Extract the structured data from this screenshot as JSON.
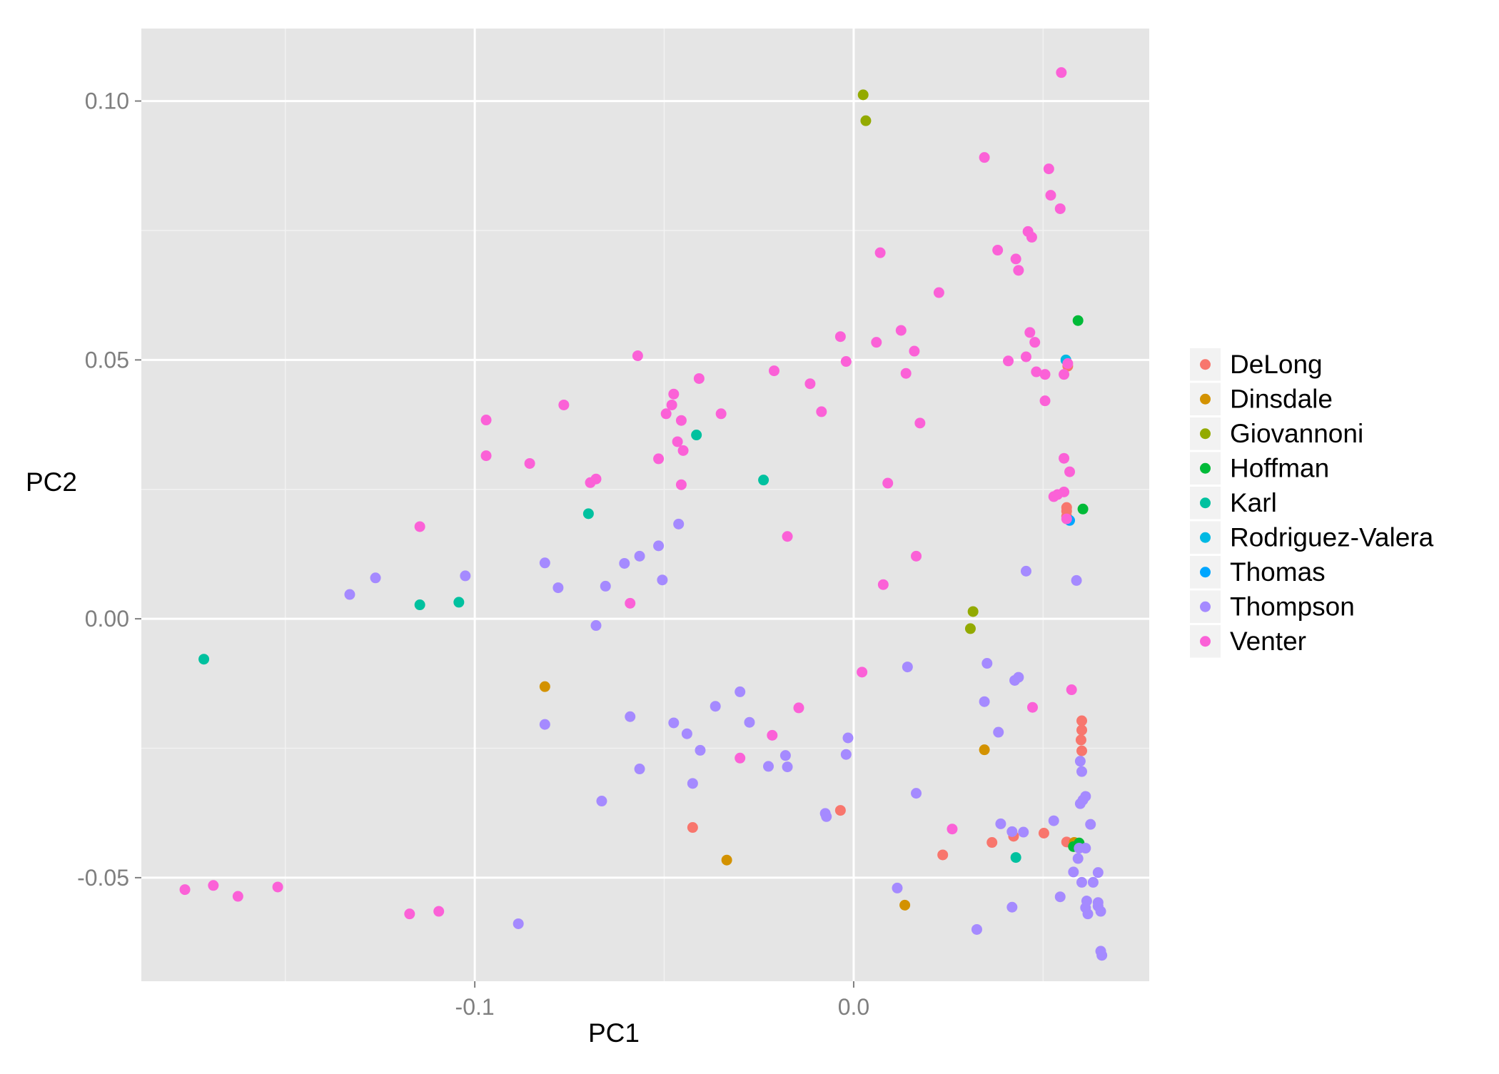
{
  "chart_data": {
    "type": "scatter",
    "title": "",
    "xlabel": "PC1",
    "ylabel": "PC2",
    "xlim": [
      -0.188,
      0.078
    ],
    "ylim": [
      -0.07,
      0.114
    ],
    "x_ticks": [
      -0.1,
      0.0
    ],
    "x_tick_labels": [
      "-0.1",
      "0.0"
    ],
    "y_ticks": [
      0.1,
      0.05,
      0.0,
      -0.05
    ],
    "y_tick_labels": [
      "0.10",
      "0.05",
      "0.00",
      "-0.05"
    ],
    "grid": true,
    "legend_position": "right",
    "colors": {
      "panel_background": "#e5e5e5",
      "grid_major": "#ffffff",
      "grid_minor": "#f2f2f2",
      "tick_label": "#7f7f7f"
    },
    "series": [
      {
        "name": "DeLong",
        "color": "#f8766d",
        "points": [
          [
            -0.0425,
            -0.0403
          ],
          [
            -0.0035,
            -0.037
          ],
          [
            0.0235,
            -0.0456
          ],
          [
            0.0365,
            -0.0432
          ],
          [
            0.0422,
            -0.042
          ],
          [
            0.0502,
            -0.0414
          ],
          [
            0.0562,
            -0.0431
          ],
          [
            0.0575,
            -0.0434
          ],
          [
            0.0602,
            -0.0197
          ],
          [
            0.0602,
            -0.0215
          ],
          [
            0.06,
            -0.0234
          ],
          [
            0.0602,
            -0.0255
          ],
          [
            0.0562,
            0.0208
          ],
          [
            0.0562,
            0.0198
          ],
          [
            0.0565,
            0.0488
          ],
          [
            0.0562,
            0.0215
          ]
        ]
      },
      {
        "name": "Dinsdale",
        "color": "#d39200",
        "points": [
          [
            -0.0815,
            -0.0131
          ],
          [
            -0.0335,
            -0.0466
          ],
          [
            0.0135,
            -0.0553
          ],
          [
            0.0345,
            -0.0253
          ],
          [
            0.0582,
            -0.0432
          ]
        ]
      },
      {
        "name": "Giovannoni",
        "color": "#93aa00",
        "points": [
          [
            0.0025,
            0.1012
          ],
          [
            0.0032,
            0.0962
          ],
          [
            0.0315,
            0.0014
          ],
          [
            0.0308,
            -0.0019
          ]
        ]
      },
      {
        "name": "Hoffman",
        "color": "#00ba38",
        "points": [
          [
            0.0592,
            0.0576
          ],
          [
            0.0605,
            0.0212
          ],
          [
            0.0595,
            -0.0433
          ],
          [
            0.058,
            -0.044
          ]
        ]
      },
      {
        "name": "Karl",
        "color": "#00c19f",
        "points": [
          [
            -0.1715,
            -0.0078
          ],
          [
            -0.1145,
            0.0027
          ],
          [
            -0.1042,
            0.0032
          ],
          [
            -0.07,
            0.0203
          ],
          [
            -0.0415,
            0.0355
          ],
          [
            -0.0238,
            0.0268
          ],
          [
            0.0428,
            -0.0461
          ]
        ]
      },
      {
        "name": "Rodriguez-Valera",
        "color": "#00b9e3",
        "points": [
          [
            0.056,
            0.05
          ]
        ]
      },
      {
        "name": "Thomas",
        "color": "#00a6ff",
        "points": [
          [
            0.057,
            0.019
          ]
        ]
      },
      {
        "name": "Thompson",
        "color": "#a58aff",
        "points": [
          [
            -0.133,
            0.0047
          ],
          [
            -0.1262,
            0.0079
          ],
          [
            -0.1025,
            0.0083
          ],
          [
            -0.0815,
            0.0108
          ],
          [
            -0.078,
            0.006
          ],
          [
            -0.068,
            -0.0013
          ],
          [
            -0.0655,
            0.0063
          ],
          [
            -0.0605,
            0.0107
          ],
          [
            -0.0565,
            0.0121
          ],
          [
            -0.0515,
            0.0141
          ],
          [
            -0.0505,
            0.0075
          ],
          [
            -0.0462,
            0.0183
          ],
          [
            -0.0815,
            -0.0204
          ],
          [
            -0.059,
            -0.0189
          ],
          [
            -0.0565,
            -0.029
          ],
          [
            -0.0665,
            -0.0352
          ],
          [
            -0.0475,
            -0.0201
          ],
          [
            -0.044,
            -0.0222
          ],
          [
            -0.0405,
            -0.0254
          ],
          [
            -0.0425,
            -0.0318
          ],
          [
            -0.0365,
            -0.0169
          ],
          [
            -0.03,
            -0.0141
          ],
          [
            -0.0275,
            -0.02
          ],
          [
            -0.0225,
            -0.0285
          ],
          [
            -0.018,
            -0.0264
          ],
          [
            -0.0175,
            -0.0286
          ],
          [
            -0.0075,
            -0.0376
          ],
          [
            -0.0072,
            -0.0382
          ],
          [
            -0.002,
            -0.0262
          ],
          [
            -0.0015,
            -0.023
          ],
          [
            -0.0885,
            -0.0589
          ],
          [
            0.0115,
            -0.052
          ],
          [
            0.0142,
            -0.0093
          ],
          [
            0.0165,
            -0.0337
          ],
          [
            0.0325,
            -0.06
          ],
          [
            0.0345,
            -0.016
          ],
          [
            0.0352,
            -0.0086
          ],
          [
            0.0382,
            -0.0219
          ],
          [
            0.0388,
            -0.0396
          ],
          [
            0.0418,
            -0.0411
          ],
          [
            0.0418,
            -0.0557
          ],
          [
            0.0425,
            -0.0119
          ],
          [
            0.0435,
            -0.0113
          ],
          [
            0.0448,
            -0.0412
          ],
          [
            0.0455,
            0.0092
          ],
          [
            0.0528,
            -0.039
          ],
          [
            0.0545,
            -0.0537
          ],
          [
            0.058,
            -0.0489
          ],
          [
            0.0588,
            0.0074
          ],
          [
            0.0595,
            -0.0443
          ],
          [
            0.0592,
            -0.0463
          ],
          [
            0.0598,
            -0.0275
          ],
          [
            0.0602,
            -0.0295
          ],
          [
            0.0598,
            -0.0357
          ],
          [
            0.0605,
            -0.035
          ],
          [
            0.0612,
            -0.0343
          ],
          [
            0.0602,
            -0.0509
          ],
          [
            0.0612,
            -0.0558
          ],
          [
            0.0615,
            -0.0545
          ],
          [
            0.0618,
            -0.057
          ],
          [
            0.0612,
            -0.0443
          ],
          [
            0.0625,
            -0.0397
          ],
          [
            0.0632,
            -0.0509
          ],
          [
            0.0645,
            -0.0548
          ],
          [
            0.0645,
            -0.0555
          ],
          [
            0.0645,
            -0.049
          ],
          [
            0.0652,
            -0.0565
          ],
          [
            0.0652,
            -0.0642
          ],
          [
            0.0655,
            -0.065
          ]
        ]
      },
      {
        "name": "Venter",
        "color": "#fb61d7",
        "points": [
          [
            -0.1765,
            -0.0523
          ],
          [
            -0.169,
            -0.0515
          ],
          [
            -0.1625,
            -0.0536
          ],
          [
            -0.152,
            -0.0518
          ],
          [
            -0.1172,
            -0.057
          ],
          [
            -0.1095,
            -0.0565
          ],
          [
            -0.1145,
            0.0178
          ],
          [
            -0.097,
            0.0384
          ],
          [
            -0.097,
            0.0315
          ],
          [
            -0.0855,
            0.03
          ],
          [
            -0.0765,
            0.0413
          ],
          [
            -0.0695,
            0.0263
          ],
          [
            -0.068,
            0.027
          ],
          [
            -0.059,
            0.003
          ],
          [
            -0.057,
            0.0508
          ],
          [
            -0.0515,
            0.0309
          ],
          [
            -0.0495,
            0.0396
          ],
          [
            -0.048,
            0.0413
          ],
          [
            -0.0475,
            0.0434
          ],
          [
            -0.0465,
            0.0342
          ],
          [
            -0.0455,
            0.0383
          ],
          [
            -0.045,
            0.0325
          ],
          [
            -0.0455,
            0.0259
          ],
          [
            -0.0408,
            0.0464
          ],
          [
            -0.035,
            0.0396
          ],
          [
            -0.03,
            -0.0269
          ],
          [
            -0.021,
            0.0479
          ],
          [
            -0.0215,
            -0.0225
          ],
          [
            -0.0175,
            0.0159
          ],
          [
            -0.0145,
            -0.0172
          ],
          [
            -0.0115,
            0.0454
          ],
          [
            -0.0085,
            0.04
          ],
          [
            -0.0035,
            0.0545
          ],
          [
            -0.002,
            0.0497
          ],
          [
            0.0022,
            -0.0103
          ],
          [
            0.006,
            0.0534
          ],
          [
            0.007,
            0.0707
          ],
          [
            0.0078,
            0.0066
          ],
          [
            0.009,
            0.0262
          ],
          [
            0.0125,
            0.0557
          ],
          [
            0.0138,
            0.0474
          ],
          [
            0.016,
            0.0517
          ],
          [
            0.0165,
            0.0121
          ],
          [
            0.0175,
            0.0378
          ],
          [
            0.0225,
            0.063
          ],
          [
            0.026,
            -0.0406
          ],
          [
            0.0345,
            0.0891
          ],
          [
            0.038,
            0.0712
          ],
          [
            0.0408,
            0.0498
          ],
          [
            0.0428,
            0.0695
          ],
          [
            0.0435,
            0.0673
          ],
          [
            0.0455,
            0.0506
          ],
          [
            0.046,
            0.0748
          ],
          [
            0.0465,
            0.0553
          ],
          [
            0.047,
            0.0737
          ],
          [
            0.0472,
            -0.0171
          ],
          [
            0.0478,
            0.0534
          ],
          [
            0.0482,
            0.0477
          ],
          [
            0.0505,
            0.0421
          ],
          [
            0.0505,
            0.0472
          ],
          [
            0.0515,
            0.0869
          ],
          [
            0.052,
            0.0818
          ],
          [
            0.0528,
            0.0236
          ],
          [
            0.0538,
            0.024
          ],
          [
            0.0545,
            0.0792
          ],
          [
            0.0548,
            0.1055
          ],
          [
            0.0555,
            0.0245
          ],
          [
            0.0555,
            0.0472
          ],
          [
            0.0555,
            0.031
          ],
          [
            0.0565,
            0.0493
          ],
          [
            0.057,
            0.0284
          ],
          [
            0.0575,
            -0.0137
          ],
          [
            0.0562,
            0.0193
          ]
        ]
      }
    ]
  }
}
